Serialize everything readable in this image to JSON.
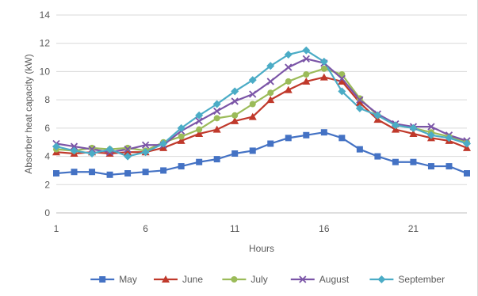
{
  "chart_data": {
    "type": "line",
    "title": "",
    "xlabel": "Hours",
    "ylabel": "Absorber heat capacity (kW)",
    "x": [
      1,
      2,
      3,
      4,
      5,
      6,
      7,
      8,
      9,
      10,
      11,
      12,
      13,
      14,
      15,
      16,
      17,
      18,
      19,
      20,
      21,
      22,
      23,
      24
    ],
    "xlim": [
      1,
      24
    ],
    "ylim": [
      0,
      14
    ],
    "x_ticks": [
      1,
      6,
      11,
      16,
      21
    ],
    "y_ticks": [
      0,
      2,
      4,
      6,
      8,
      10,
      12,
      14
    ],
    "grid": "horizontal",
    "legend_position": "bottom",
    "series": [
      {
        "name": "May",
        "color": "#4472c4",
        "marker": "square",
        "values": [
          2.8,
          2.9,
          2.9,
          2.7,
          2.8,
          2.9,
          3.0,
          3.3,
          3.6,
          3.8,
          4.2,
          4.4,
          4.9,
          5.3,
          5.5,
          5.7,
          5.3,
          4.5,
          4.0,
          3.6,
          3.6,
          3.3,
          3.3,
          2.8
        ]
      },
      {
        "name": "June",
        "color": "#c0392b",
        "marker": "triangle",
        "values": [
          4.3,
          4.2,
          4.3,
          4.2,
          4.3,
          4.3,
          4.6,
          5.1,
          5.6,
          5.9,
          6.5,
          6.8,
          8.0,
          8.7,
          9.3,
          9.6,
          9.3,
          7.8,
          6.6,
          5.9,
          5.6,
          5.3,
          5.1,
          4.6
        ]
      },
      {
        "name": "July",
        "color": "#9bbb59",
        "marker": "circle",
        "values": [
          4.5,
          4.4,
          4.6,
          4.5,
          4.6,
          4.4,
          5.0,
          5.4,
          5.9,
          6.7,
          6.9,
          7.7,
          8.5,
          9.3,
          9.8,
          10.2,
          9.8,
          8.1,
          6.9,
          6.2,
          6.0,
          5.7,
          5.4,
          5.0
        ]
      },
      {
        "name": "August",
        "color": "#7b55a7",
        "marker": "x",
        "values": [
          4.9,
          4.7,
          4.5,
          4.3,
          4.5,
          4.8,
          4.8,
          5.8,
          6.5,
          7.2,
          7.9,
          8.4,
          9.3,
          10.3,
          10.9,
          10.6,
          9.5,
          8.0,
          7.0,
          6.3,
          6.1,
          6.1,
          5.5,
          5.1
        ]
      },
      {
        "name": "September",
        "color": "#4bacc6",
        "marker": "diamond",
        "values": [
          4.7,
          4.4,
          4.2,
          4.5,
          4.0,
          4.3,
          4.9,
          6.0,
          6.9,
          7.7,
          8.6,
          9.4,
          10.4,
          11.2,
          11.5,
          10.7,
          8.6,
          7.4,
          6.9,
          6.2,
          6.0,
          5.5,
          5.3,
          4.9
        ]
      }
    ]
  }
}
